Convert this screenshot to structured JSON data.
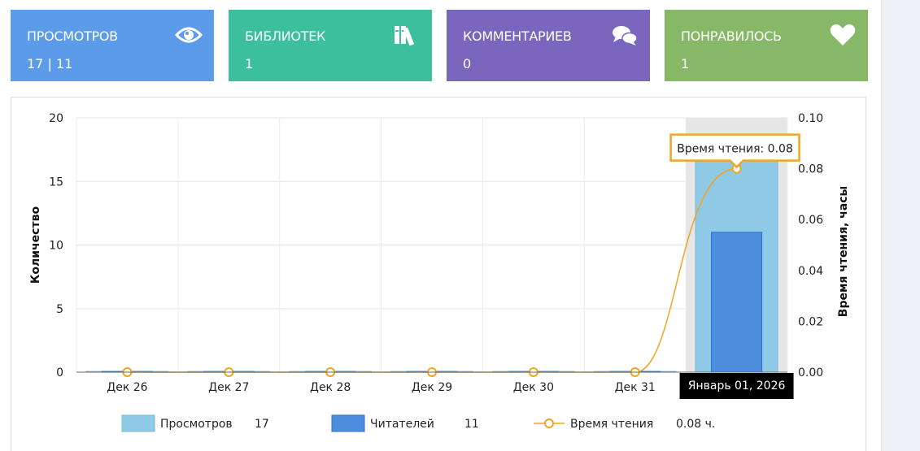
{
  "stats": [
    {
      "title": "ПРОСМОТРОВ",
      "value": "17 | 11",
      "icon": "eye-icon",
      "color": "#5b9be8"
    },
    {
      "title": "БИБЛИОТЕК",
      "value": "1",
      "icon": "books-icon",
      "color": "#3bbf9c"
    },
    {
      "title": "КОММЕНТАРИЕВ",
      "value": "0",
      "icon": "comments-icon",
      "color": "#7a66bd"
    },
    {
      "title": "ПОНРАВИЛОСЬ",
      "value": "1",
      "icon": "heart-icon",
      "color": "#86b868"
    }
  ],
  "chart_data": {
    "type": "bar",
    "categories": [
      "Дек 26",
      "Дек 27",
      "Дек 28",
      "Дек 29",
      "Дек 30",
      "Дек 31",
      "Январь 01, 2026"
    ],
    "hover_category": "Январь 01, 2026",
    "ylabel": "Количество",
    "y2label": "Время чтения, часы",
    "ylim": [
      0,
      20
    ],
    "yticks": [
      "0",
      "5",
      "10",
      "15",
      "20"
    ],
    "y2lim": [
      0,
      0.1
    ],
    "y2ticks": [
      "0.00",
      "0.02",
      "0.04",
      "0.06",
      "0.08",
      "0.10"
    ],
    "grid": true,
    "legend_position": "bottom",
    "series": [
      {
        "name": "Просмотров",
        "type": "bar",
        "axis": "left",
        "color": "#8ec9e6",
        "values": [
          0,
          0,
          0,
          0,
          0,
          0,
          17
        ],
        "total": "17"
      },
      {
        "name": "Читателей",
        "type": "bar",
        "axis": "left",
        "color": "#4d8ede",
        "values": [
          0,
          0,
          0,
          0,
          0,
          0,
          11
        ],
        "total": "11"
      },
      {
        "name": "Время чтения",
        "type": "line",
        "axis": "right",
        "color": "#f0a524",
        "values": [
          0,
          0,
          0,
          0,
          0,
          0,
          0.08
        ],
        "total": "0.08 ч."
      }
    ],
    "tooltip": "Время чтения: 0.08"
  }
}
